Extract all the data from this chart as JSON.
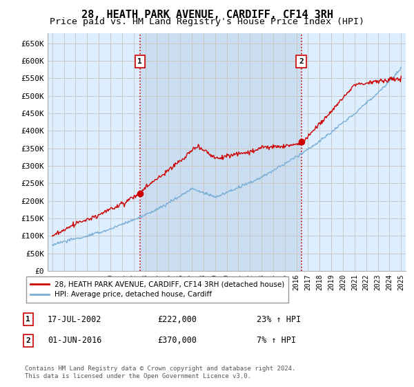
{
  "title": "28, HEATH PARK AVENUE, CARDIFF, CF14 3RH",
  "subtitle": "Price paid vs. HM Land Registry's House Price Index (HPI)",
  "ylabel_ticks": [
    "£0",
    "£50K",
    "£100K",
    "£150K",
    "£200K",
    "£250K",
    "£300K",
    "£350K",
    "£400K",
    "£450K",
    "£500K",
    "£550K",
    "£600K",
    "£650K"
  ],
  "ytick_values": [
    0,
    50000,
    100000,
    150000,
    200000,
    250000,
    300000,
    350000,
    400000,
    450000,
    500000,
    550000,
    600000,
    650000
  ],
  "ylim": [
    0,
    680000
  ],
  "xlim_start": 1994.6,
  "xlim_end": 2025.4,
  "xtick_years": [
    1995,
    1996,
    1997,
    1998,
    1999,
    2000,
    2001,
    2002,
    2003,
    2004,
    2005,
    2006,
    2007,
    2008,
    2009,
    2010,
    2011,
    2012,
    2013,
    2014,
    2015,
    2016,
    2017,
    2018,
    2019,
    2020,
    2021,
    2022,
    2023,
    2024,
    2025
  ],
  "hpi_color": "#7aaed4",
  "price_color": "#cc0000",
  "vline_color": "#cc0000",
  "grid_color": "#c8c8c8",
  "bg_color": "#ddeeff",
  "fill_between_color": "#c8dcf0",
  "legend_label_price": "28, HEATH PARK AVENUE, CARDIFF, CF14 3RH (detached house)",
  "legend_label_hpi": "HPI: Average price, detached house, Cardiff",
  "sale1_year": 2002.54,
  "sale1_price": 222000,
  "sale1_label": "1",
  "sale2_year": 2016.42,
  "sale2_price": 370000,
  "sale2_label": "2",
  "footer": "Contains HM Land Registry data © Crown copyright and database right 2024.\nThis data is licensed under the Open Government Licence v3.0.",
  "title_fontsize": 11,
  "subtitle_fontsize": 9.5,
  "annotation1_date": "17-JUL-2002",
  "annotation1_price": "£222,000",
  "annotation1_hpi": "23% ↑ HPI",
  "annotation2_date": "01-JUN-2016",
  "annotation2_price": "£370,000",
  "annotation2_hpi": "7% ↑ HPI"
}
